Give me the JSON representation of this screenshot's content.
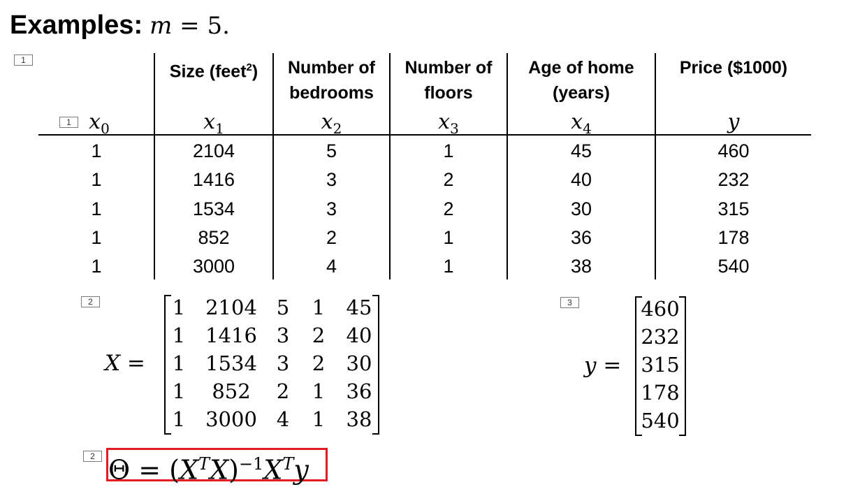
{
  "title": {
    "label": "Examples:",
    "math_var": "m",
    "math_rest": " = 5."
  },
  "markers": {
    "table": "1",
    "x0": "1",
    "matrix_x": "2",
    "vector_y": "3",
    "formula": "2"
  },
  "table": {
    "headers": [
      {
        "line1": "",
        "line2": "",
        "var": "x",
        "sub": "0"
      },
      {
        "line1": "Size (feet",
        "sup": "2",
        "line1_end": ")",
        "line2": "",
        "var": "x",
        "sub": "1"
      },
      {
        "line1": "Number of",
        "line2": "bedrooms",
        "var": "x",
        "sub": "2"
      },
      {
        "line1": "Number of",
        "line2": "floors",
        "var": "x",
        "sub": "3"
      },
      {
        "line1": "Age of home",
        "line2": "(years)",
        "var": "x",
        "sub": "4"
      },
      {
        "line1": "Price ($1000)",
        "line2": "",
        "var": "y",
        "sub": ""
      }
    ],
    "rows": [
      [
        "1",
        "2104",
        "5",
        "1",
        "45",
        "460"
      ],
      [
        "1",
        "1416",
        "3",
        "2",
        "40",
        "232"
      ],
      [
        "1",
        "1534",
        "3",
        "2",
        "30",
        "315"
      ],
      [
        "1",
        "852",
        "2",
        "1",
        "36",
        "178"
      ],
      [
        "1",
        "3000",
        "4",
        "1",
        "38",
        "540"
      ]
    ]
  },
  "matrix_x": {
    "label": "X =",
    "rows": [
      [
        "1",
        "2104",
        "5",
        "1",
        "45"
      ],
      [
        "1",
        "1416",
        "3",
        "2",
        "40"
      ],
      [
        "1",
        "1534",
        "3",
        "2",
        "30"
      ],
      [
        "1",
        "852",
        "2",
        "1",
        "36"
      ],
      [
        "1",
        "3000",
        "4",
        "1",
        "38"
      ]
    ]
  },
  "vector_y": {
    "label": "y =",
    "values": [
      "460",
      "232",
      "315",
      "178",
      "540"
    ]
  },
  "formula": {
    "theta": "Θ",
    "eq": " = (",
    "x1": "X",
    "t1": "T",
    "x2": "X",
    "close": ")",
    "inv": "−1",
    "x3": "X",
    "t2": "T",
    "y": "y"
  }
}
